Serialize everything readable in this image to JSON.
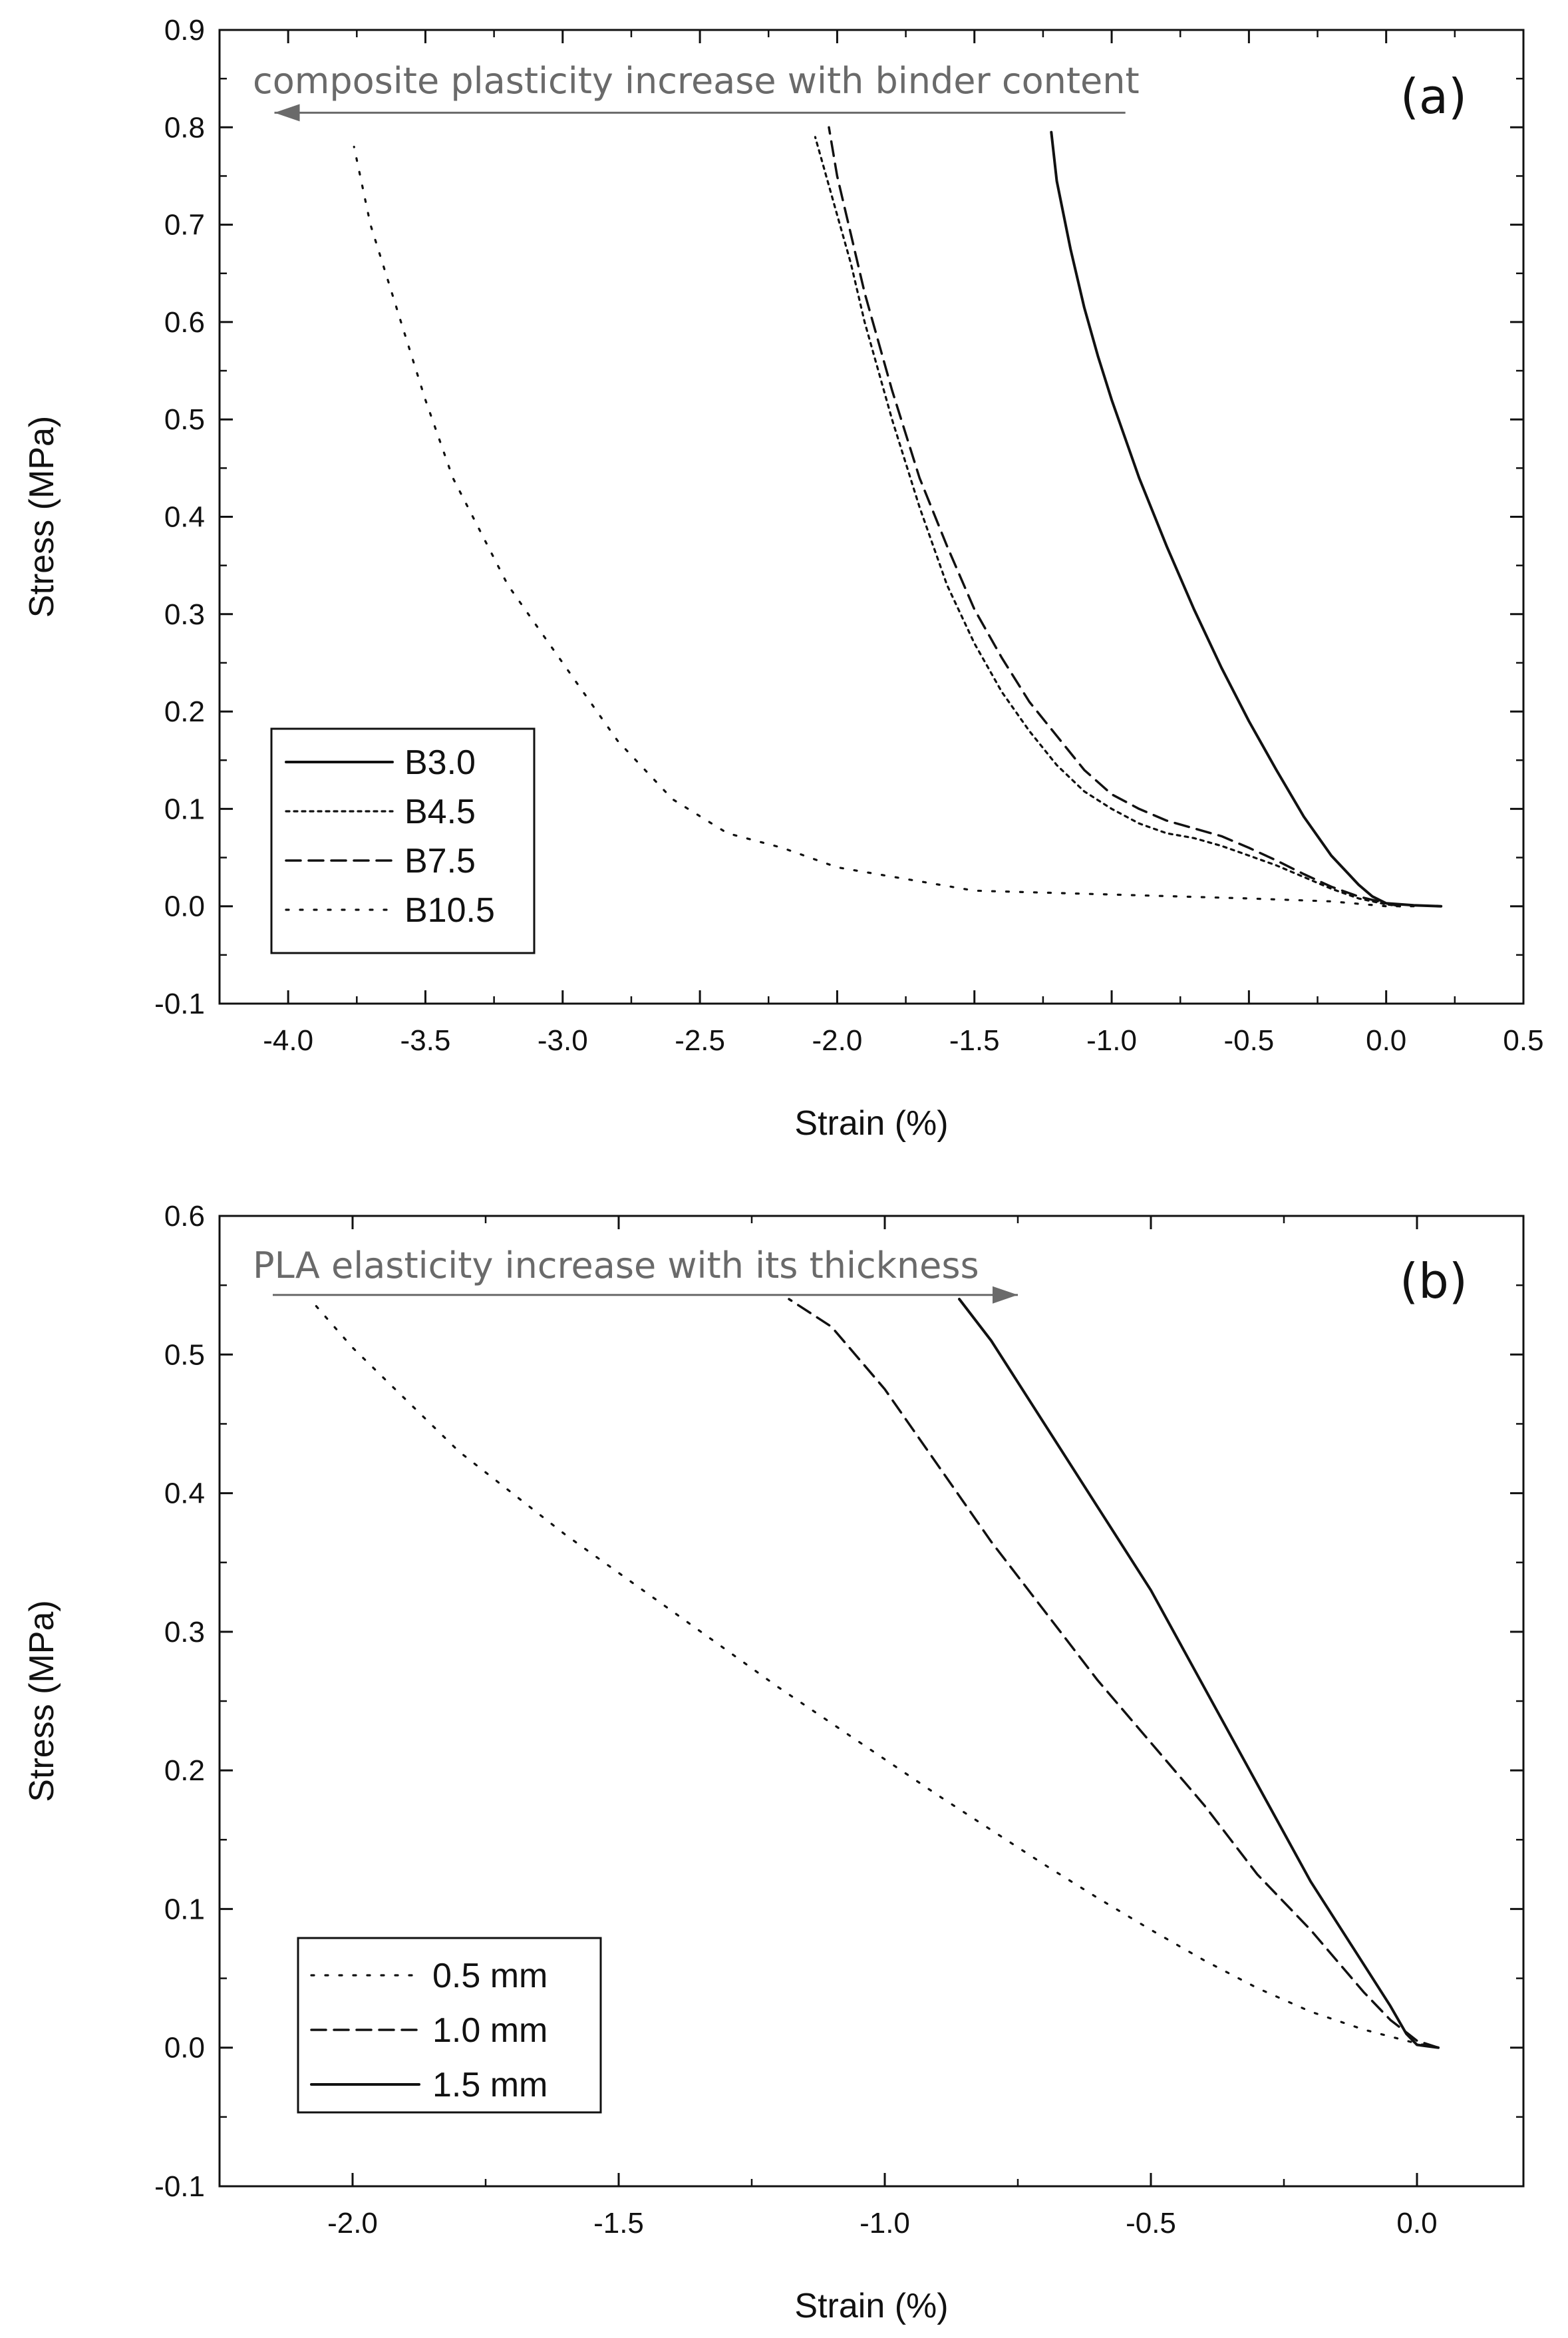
{
  "chart_data": [
    {
      "type": "line",
      "panel_label": "(a)",
      "xlabel": "Strain (%)",
      "ylabel": "Stress (MPa)",
      "xlim": [
        -4.25,
        0.5
      ],
      "ylim": [
        -0.1,
        0.9
      ],
      "xticks": [
        "-4.0",
        "-3.5",
        "-3.0",
        "-2.5",
        "-2.0",
        "-1.5",
        "-1.0",
        "-0.5",
        "0.0",
        "0.5"
      ],
      "yticks": [
        "-0.1",
        "0.0",
        "0.1",
        "0.2",
        "0.3",
        "0.4",
        "0.5",
        "0.6",
        "0.7",
        "0.8",
        "0.9"
      ],
      "grid": false,
      "legend_position": "lower-left",
      "annotation": {
        "text": "composite plasticity increase with binder content",
        "arrow_from": [
          -0.95,
          0.815
        ],
        "arrow_to": [
          -4.05,
          0.815
        ],
        "color": "#6a6a6a"
      },
      "series": [
        {
          "name": "B3.0",
          "style": "solid",
          "x": [
            0.2,
            0.1,
            0.0,
            -0.05,
            -0.1,
            -0.2,
            -0.3,
            -0.4,
            -0.5,
            -0.6,
            -0.7,
            -0.8,
            -0.9,
            -1.0,
            -1.05,
            -1.1,
            -1.15,
            -1.2,
            -1.22
          ],
          "y": [
            0.0,
            0.001,
            0.003,
            0.01,
            0.022,
            0.052,
            0.092,
            0.14,
            0.19,
            0.245,
            0.305,
            0.37,
            0.44,
            0.52,
            0.565,
            0.615,
            0.675,
            0.745,
            0.795
          ]
        },
        {
          "name": "B4.5",
          "style": "dotted",
          "x": [
            0.05,
            0.0,
            -0.1,
            -0.2,
            -0.3,
            -0.4,
            -0.5,
            -0.6,
            -0.7,
            -0.8,
            -0.9,
            -1.0,
            -1.1,
            -1.2,
            -1.3,
            -1.4,
            -1.5,
            -1.6,
            -1.7,
            -1.8,
            -1.9,
            -1.95,
            -2.0,
            -2.05,
            -2.08
          ],
          "y": [
            0.0,
            0.002,
            0.008,
            0.018,
            0.03,
            0.042,
            0.052,
            0.062,
            0.07,
            0.075,
            0.085,
            0.1,
            0.118,
            0.145,
            0.18,
            0.22,
            0.27,
            0.33,
            0.41,
            0.5,
            0.6,
            0.66,
            0.71,
            0.76,
            0.79
          ]
        },
        {
          "name": "B7.5",
          "style": "dashed",
          "x": [
            0.05,
            0.0,
            -0.1,
            -0.2,
            -0.3,
            -0.4,
            -0.5,
            -0.6,
            -0.7,
            -0.8,
            -0.9,
            -1.0,
            -1.1,
            -1.2,
            -1.3,
            -1.4,
            -1.5,
            -1.6,
            -1.7,
            -1.8,
            -1.9,
            -1.95,
            -2.0,
            -2.03
          ],
          "y": [
            0.0,
            0.003,
            0.01,
            0.02,
            0.033,
            0.047,
            0.06,
            0.072,
            0.08,
            0.088,
            0.1,
            0.115,
            0.14,
            0.175,
            0.21,
            0.255,
            0.305,
            0.37,
            0.44,
            0.53,
            0.63,
            0.69,
            0.75,
            0.8
          ]
        },
        {
          "name": "B10.5",
          "style": "loose-dotted",
          "x": [
            0.1,
            0.0,
            -0.2,
            -0.5,
            -1.0,
            -1.5,
            -2.0,
            -2.2,
            -2.4,
            -2.6,
            -2.8,
            -3.0,
            -3.2,
            -3.4,
            -3.5,
            -3.6,
            -3.7,
            -3.76
          ],
          "y": [
            0.0,
            0.0,
            0.005,
            0.008,
            0.012,
            0.016,
            0.04,
            0.06,
            0.075,
            0.11,
            0.17,
            0.25,
            0.33,
            0.44,
            0.52,
            0.61,
            0.7,
            0.78
          ]
        }
      ]
    },
    {
      "type": "line",
      "panel_label": "(b)",
      "xlabel": "Strain (%)",
      "ylabel": "Stress (MPa)",
      "xlim": [
        -2.25,
        0.2
      ],
      "ylim": [
        -0.1,
        0.6
      ],
      "xticks": [
        "-2.0",
        "-1.5",
        "-1.0",
        "-0.5",
        "0.0"
      ],
      "yticks": [
        "-0.1",
        "0.0",
        "0.1",
        "0.2",
        "0.3",
        "0.4",
        "0.5",
        "0.6"
      ],
      "grid": false,
      "legend_position": "lower-left",
      "annotation": {
        "text": "PLA  elasticity increase with its thickness",
        "arrow_from": [
          -2.15,
          0.543
        ],
        "arrow_to": [
          -0.75,
          0.543
        ],
        "color": "#6a6a6a"
      },
      "series": [
        {
          "name": "0.5 mm",
          "style": "loose-dotted",
          "x": [
            0.04,
            0.0,
            -0.05,
            -0.1,
            -0.2,
            -0.3,
            -0.4,
            -0.5,
            -0.6,
            -0.7,
            -0.8,
            -0.9,
            -1.0,
            -1.2,
            -1.4,
            -1.6,
            -1.8,
            -2.0,
            -2.08
          ],
          "y": [
            0.0,
            0.003,
            0.008,
            0.013,
            0.026,
            0.043,
            0.063,
            0.085,
            0.108,
            0.132,
            0.157,
            0.182,
            0.208,
            0.26,
            0.315,
            0.37,
            0.43,
            0.505,
            0.54
          ]
        },
        {
          "name": "1.0 mm",
          "style": "dashed",
          "x": [
            0.04,
            0.0,
            -0.05,
            -0.1,
            -0.2,
            -0.3,
            -0.4,
            -0.5,
            -0.6,
            -0.7,
            -0.8,
            -0.9,
            -1.0,
            -1.1,
            -1.18
          ],
          "y": [
            0.0,
            0.005,
            0.02,
            0.04,
            0.085,
            0.125,
            0.175,
            0.22,
            0.265,
            0.315,
            0.365,
            0.42,
            0.475,
            0.52,
            0.54
          ]
        },
        {
          "name": "1.5 mm",
          "style": "solid",
          "x": [
            0.04,
            0.0,
            -0.02,
            -0.05,
            -0.1,
            -0.2,
            -0.3,
            -0.4,
            -0.5,
            -0.6,
            -0.7,
            -0.8,
            -0.86
          ],
          "y": [
            0.0,
            0.002,
            0.01,
            0.03,
            0.06,
            0.12,
            0.19,
            0.26,
            0.33,
            0.39,
            0.45,
            0.51,
            0.54
          ]
        }
      ]
    }
  ]
}
